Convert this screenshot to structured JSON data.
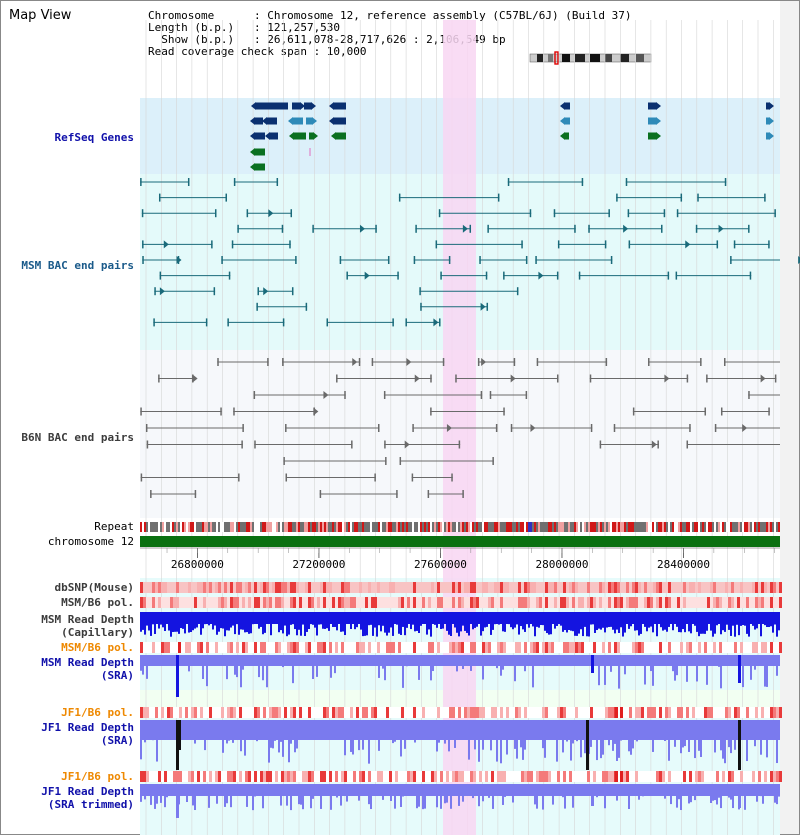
{
  "page": {
    "title": "Map View"
  },
  "info": {
    "chromosome": "Chromosome      : Chromosome 12, reference assembly (C57BL/6J) (Build 37)",
    "length": "Length (b.p.)   : 121,257,530",
    "show": "  Show (b.p.)   : 26,611,078-28,717,626 : 2,106,549 bp",
    "coverage": "Read coverage check span : 10,000"
  },
  "tracks": {
    "refseq": "RefSeq Genes",
    "msm_bac": "MSM BAC end pairs",
    "b6n_bac": "B6N BAC end pairs",
    "repeat": "Repeat",
    "chrom": "chromosome 12",
    "dbsnp": "dbSNP(Mouse)",
    "msm_pol1": "MSM/B6 pol.",
    "msm_cap": [
      "MSM Read Depth",
      "(Capillary)"
    ],
    "msm_pol2": "MSM/B6 pol.",
    "msm_sra": [
      "MSM Read Depth",
      "(SRA)"
    ],
    "jf1_pol1": "JF1/B6 pol.",
    "jf1_sra": [
      "JF1 Read Depth",
      "(SRA)"
    ],
    "jf1_pol2": "JF1/B6 pol.",
    "jf1_trim": [
      "JF1 Read Depth",
      "(SRA trimmed)"
    ]
  },
  "axis": {
    "ticks": [
      "26800000",
      "27200000",
      "27600000",
      "28000000",
      "28400000"
    ],
    "tick_values": [
      26800000,
      27200000,
      27600000,
      28000000,
      28400000
    ],
    "range": [
      26611078,
      28717626
    ]
  },
  "colors": {
    "refseq_bg": "#dcf0fa",
    "bac_bg": "#e4fafa",
    "highlight": "#f8d6f2",
    "gene_navy": "#0a3070",
    "gene_teal": "#2e8ab8",
    "gene_green": "#0a7020",
    "msm_pair": "#1a6a7a",
    "b6n_pair": "#6a6a6a",
    "chromosome": "#0a7010",
    "depth_blue": "#1414e0",
    "depth_light": "#7a7aee",
    "pol_label": "#ee8800",
    "label_blue": "#1010aa",
    "label_msm": "#1a5a8a",
    "label_gray": "#3c3c3c"
  }
}
